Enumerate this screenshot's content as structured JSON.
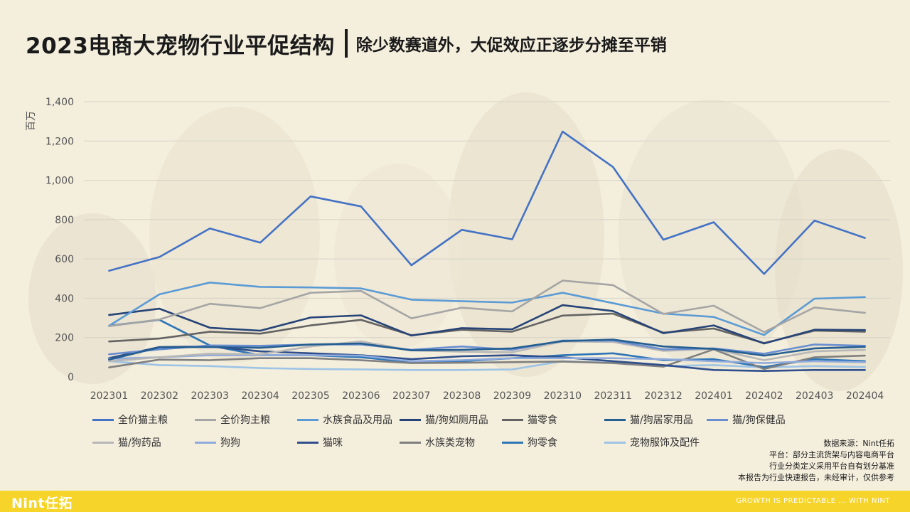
{
  "header": {
    "title": "2023电商大宠物行业平促结构",
    "subtitle": "除少数赛道外，大促效应正逐步分摊至平销"
  },
  "chart_data": {
    "type": "line",
    "ylabel": "百万",
    "ylim": [
      0,
      1400
    ],
    "yticks": [
      0,
      200,
      400,
      600,
      800,
      1000,
      1200,
      1400
    ],
    "ytick_labels": [
      "0",
      "200",
      "400",
      "600",
      "800",
      "1,000",
      "1,200",
      "1,400"
    ],
    "grid": true,
    "legend_position": "bottom",
    "categories": [
      "202301",
      "202302",
      "202303",
      "202304",
      "202305",
      "202306",
      "202307",
      "202308",
      "202309",
      "202310",
      "202311",
      "202312",
      "202401",
      "202402",
      "202403",
      "202404"
    ],
    "series": [
      {
        "name": "全价猫主粮",
        "color": "#4472c4",
        "values": [
          540,
          610,
          755,
          683,
          918,
          867,
          568,
          748,
          700,
          1248,
          1068,
          698,
          787,
          524,
          795,
          707
        ]
      },
      {
        "name": "全价狗主粮",
        "color": "#a5a5a5",
        "values": [
          258,
          292,
          372,
          350,
          428,
          437,
          298,
          352,
          333,
          490,
          467,
          320,
          362,
          228,
          353,
          326
        ]
      },
      {
        "name": "水族食品及用品",
        "color": "#5b9bd5",
        "values": [
          260,
          420,
          480,
          458,
          455,
          450,
          393,
          385,
          378,
          428,
          375,
          322,
          305,
          213,
          398,
          406
        ]
      },
      {
        "name": "猫/狗如厕用品",
        "color": "#264478",
        "values": [
          315,
          347,
          250,
          235,
          302,
          313,
          210,
          248,
          242,
          365,
          335,
          222,
          262,
          170,
          240,
          238
        ]
      },
      {
        "name": "猫零食",
        "color": "#636363",
        "values": [
          180,
          195,
          230,
          220,
          262,
          290,
          212,
          240,
          230,
          312,
          322,
          225,
          246,
          172,
          235,
          230
        ]
      },
      {
        "name": "猫/狗居家用品",
        "color": "#255e91",
        "values": [
          88,
          150,
          152,
          148,
          165,
          170,
          135,
          138,
          145,
          182,
          190,
          155,
          142,
          108,
          145,
          153
        ]
      },
      {
        "name": "猫/狗保健品",
        "color": "#698ed0",
        "values": [
          115,
          140,
          160,
          158,
          165,
          165,
          138,
          155,
          138,
          185,
          185,
          140,
          145,
          118,
          165,
          158
        ]
      },
      {
        "name": "猫/狗药品",
        "color": "#b7b7b7",
        "values": [
          80,
          100,
          118,
          115,
          155,
          180,
          135,
          128,
          125,
          180,
          178,
          132,
          142,
          85,
          130,
          137
        ]
      },
      {
        "name": "狗狗",
        "color": "#8faadc",
        "values": [
          92,
          100,
          110,
          110,
          110,
          108,
          80,
          85,
          95,
          95,
          95,
          90,
          80,
          70,
          80,
          75
        ]
      },
      {
        "name": "猫咪",
        "color": "#2f4e8c",
        "values": [
          95,
          152,
          155,
          130,
          120,
          110,
          90,
          105,
          110,
          100,
          80,
          60,
          35,
          30,
          35,
          35
        ]
      },
      {
        "name": "水族类宠物",
        "color": "#7f7f7f",
        "values": [
          48,
          88,
          85,
          95,
          95,
          85,
          70,
          72,
          75,
          78,
          70,
          52,
          140,
          40,
          100,
          108
        ]
      },
      {
        "name": "狗零食",
        "color": "#2e75b6",
        "values": [
          260,
          290,
          160,
          110,
          110,
          100,
          75,
          80,
          95,
          110,
          120,
          85,
          90,
          50,
          90,
          80
        ]
      },
      {
        "name": "宠物服饰及配件",
        "color": "#9dc3e6",
        "values": [
          80,
          60,
          55,
          45,
          40,
          38,
          35,
          35,
          38,
          80,
          72,
          55,
          60,
          48,
          55,
          50
        ]
      }
    ]
  },
  "source": {
    "line1": "数据来源：Nint任拓",
    "line2": "平台：部分主流货架与内容电商平台",
    "line3": "行业分类定义采用平台自有划分基准",
    "line4": "本报告为行业快速报告，未经审计，仅供参考"
  },
  "footer": {
    "logo": "Nint任拓",
    "tagline": "GROWTH IS PREDICTABLE ... WITH NINT"
  }
}
